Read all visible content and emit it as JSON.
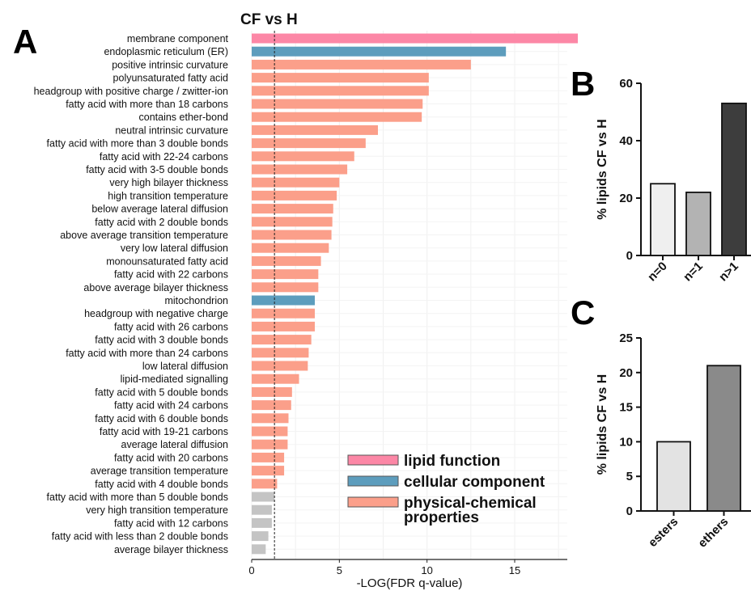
{
  "panel_letters": {
    "a": "A",
    "b": "B",
    "c": "C"
  },
  "colors": {
    "lipid_function": "#fc87a6",
    "cellular_component": "#5d9dbd",
    "physical_chemical": "#fb9f8a",
    "not_significant": "#c4c4c4",
    "b_n0": "#efefef",
    "b_n1": "#b3b3b3",
    "b_n2": "#3d3d3d",
    "c_esters": "#e3e3e3",
    "c_ethers": "#8a8a8a"
  },
  "chart_data": [
    {
      "type": "bar",
      "orientation": "horizontal",
      "title": "CF vs H",
      "xlabel": "-LOG(FDR q-value)",
      "xlim": [
        0,
        18
      ],
      "xticks": [
        "0",
        "5",
        "10",
        "15"
      ],
      "threshold_line": 1.3,
      "grid": true,
      "legend_position": "bottom-right",
      "legend": [
        {
          "key": "lipid_function",
          "label": "lipid function"
        },
        {
          "key": "cellular_component",
          "label": "cellular component"
        },
        {
          "key": "physical_chemical",
          "label_lines": [
            "physical-chemical",
            "properties"
          ]
        }
      ],
      "categories": [
        "membrane component",
        "endoplasmic reticulum (ER)",
        "positive intrinsic curvature",
        "polyunsaturated fatty acid",
        "headgroup with positive charge / zwitter-ion",
        "fatty acid with more than 18 carbons",
        "contains ether-bond",
        "neutral intrinsic curvature",
        "fatty acid with more than 3 double bonds",
        "fatty acid with 22-24 carbons",
        "fatty acid with 3-5 double bonds",
        "very high bilayer thickness",
        "high transition temperature",
        "below average lateral diffusion",
        "fatty acid with 2 double bonds",
        "above average transition temperature",
        "very low lateral diffusion",
        "monounsaturated fatty acid",
        "fatty acid with 22 carbons",
        "above average bilayer thickness",
        "mitochondrion",
        "headgroup with negative charge",
        "fatty acid with 26 carbons",
        "fatty acid with 3 double bonds",
        "fatty acid with more than 24 carbons",
        "low lateral diffusion",
        "lipid-mediated signalling",
        "fatty acid with 5 double bonds",
        "fatty acid with 24 carbons",
        "fatty acid with 6 double bonds",
        "fatty acid with 19-21 carbons",
        "average lateral diffusion",
        "fatty acid with 20 carbons",
        "average transition temperature",
        "fatty acid with 4 double bonds",
        "fatty acid with more than 5 double bonds",
        "very high transition temperature",
        "fatty acid with 12 carbons",
        "fatty acid with less than 2 double bonds",
        "average bilayer thickness"
      ],
      "values": [
        18.6,
        14.5,
        12.5,
        10.1,
        10.1,
        9.75,
        9.7,
        7.2,
        6.5,
        5.85,
        5.45,
        5.0,
        4.85,
        4.65,
        4.6,
        4.55,
        4.4,
        3.95,
        3.8,
        3.8,
        3.6,
        3.6,
        3.6,
        3.4,
        3.25,
        3.2,
        2.7,
        2.3,
        2.25,
        2.1,
        2.05,
        2.05,
        1.85,
        1.85,
        1.45,
        1.3,
        1.15,
        1.15,
        0.95,
        0.8
      ],
      "groups": [
        "lipid_function",
        "cellular_component",
        "physical_chemical",
        "physical_chemical",
        "physical_chemical",
        "physical_chemical",
        "physical_chemical",
        "physical_chemical",
        "physical_chemical",
        "physical_chemical",
        "physical_chemical",
        "physical_chemical",
        "physical_chemical",
        "physical_chemical",
        "physical_chemical",
        "physical_chemical",
        "physical_chemical",
        "physical_chemical",
        "physical_chemical",
        "physical_chemical",
        "cellular_component",
        "physical_chemical",
        "physical_chemical",
        "physical_chemical",
        "physical_chemical",
        "physical_chemical",
        "physical_chemical",
        "physical_chemical",
        "physical_chemical",
        "physical_chemical",
        "physical_chemical",
        "physical_chemical",
        "physical_chemical",
        "physical_chemical",
        "physical_chemical",
        "not_significant",
        "not_significant",
        "not_significant",
        "not_significant",
        "not_significant"
      ]
    },
    {
      "type": "bar",
      "ylabel": "% lipids CF vs H",
      "ylim": [
        0,
        60
      ],
      "yticks": [
        "0",
        "20",
        "40",
        "60"
      ],
      "categories": [
        "n=0",
        "n=1",
        "n>1"
      ],
      "values": [
        25,
        22,
        53
      ],
      "bar_colors": [
        "b_n0",
        "b_n1",
        "b_n2"
      ]
    },
    {
      "type": "bar",
      "ylabel": "% lipids CF vs H",
      "ylim": [
        0,
        25
      ],
      "yticks": [
        "0",
        "5",
        "10",
        "15",
        "20",
        "25"
      ],
      "categories": [
        "esters",
        "ethers"
      ],
      "values": [
        10,
        21
      ],
      "bar_colors": [
        "c_esters",
        "c_ethers"
      ]
    }
  ]
}
